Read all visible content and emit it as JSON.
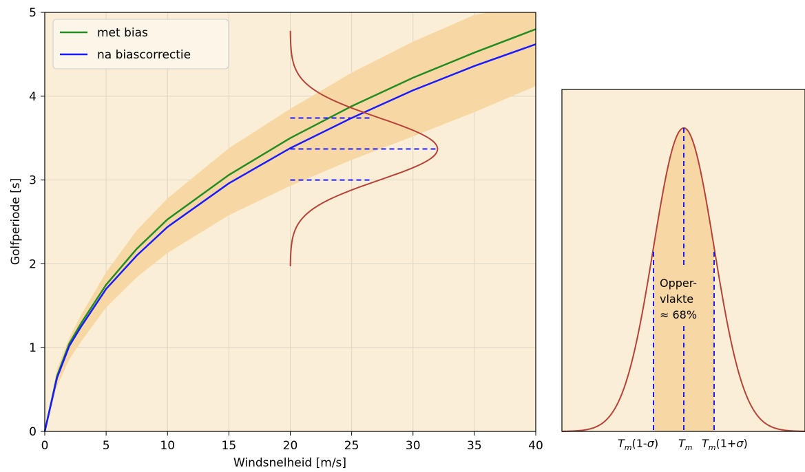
{
  "chart_data": [
    {
      "type": "line",
      "xlabel": "Windsnelheid [m/s]",
      "ylabel": "Golfperiode [s]",
      "xlim": [
        0,
        40
      ],
      "ylim": [
        0,
        5
      ],
      "xticks": [
        0,
        5,
        10,
        15,
        20,
        25,
        30,
        35,
        40
      ],
      "yticks": [
        0,
        1,
        2,
        3,
        4,
        5
      ],
      "grid": true,
      "legend_position": "top-left",
      "series": [
        {
          "name": "met bias",
          "color": "#228b22",
          "x": [
            0,
            1,
            2,
            3,
            5,
            7.5,
            10,
            15,
            20,
            25,
            30,
            35,
            40
          ],
          "y": [
            0,
            0.66,
            1.05,
            1.3,
            1.75,
            2.18,
            2.53,
            3.06,
            3.5,
            3.88,
            4.22,
            4.52,
            4.8
          ]
        },
        {
          "name": "na biascorrectie",
          "color": "#1a1aff",
          "x": [
            0,
            1,
            2,
            3,
            5,
            7.5,
            10,
            15,
            20,
            25,
            30,
            35,
            40
          ],
          "y": [
            0,
            0.64,
            1.02,
            1.26,
            1.7,
            2.1,
            2.44,
            2.96,
            3.38,
            3.74,
            4.07,
            4.36,
            4.62
          ]
        }
      ],
      "uncertainty_band": {
        "color": "#f7d7a4",
        "x": [
          1,
          2,
          3,
          5,
          7.5,
          10,
          15,
          20,
          25,
          30,
          35,
          40
        ],
        "upper": [
          0.74,
          1.12,
          1.4,
          1.9,
          2.4,
          2.78,
          3.38,
          3.85,
          4.28,
          4.65,
          4.97,
          5.1
        ],
        "lower": [
          0.54,
          0.86,
          1.08,
          1.48,
          1.84,
          2.13,
          2.58,
          2.93,
          3.24,
          3.52,
          3.81,
          4.12
        ]
      },
      "distribution_curve": {
        "color": "#b5413a",
        "x_base": 20,
        "x_peak": 32,
        "mean": 3.37,
        "sigma": 0.37,
        "y_range": [
          1.97,
          4.78
        ]
      },
      "reference_lines": [
        {
          "y": 3.74,
          "x": [
            20,
            26.6
          ]
        },
        {
          "y": 3.37,
          "x": [
            20,
            32
          ]
        },
        {
          "y": 3.0,
          "x": [
            20,
            26.6
          ]
        }
      ]
    },
    {
      "type": "area",
      "description_curve": "normal distribution",
      "shaded_fraction": "≈ 68%",
      "tick_labels": [
        "Tm(1-σ)",
        "Tm",
        "Tm(1+σ)"
      ],
      "annotation": [
        "Opper-",
        "vlakte",
        "≈ 68%"
      ]
    }
  ],
  "colors": {
    "background": "#faefd6",
    "band": "#f7d7a4",
    "curve": "#b5413a",
    "dash": "#1a1aff"
  }
}
